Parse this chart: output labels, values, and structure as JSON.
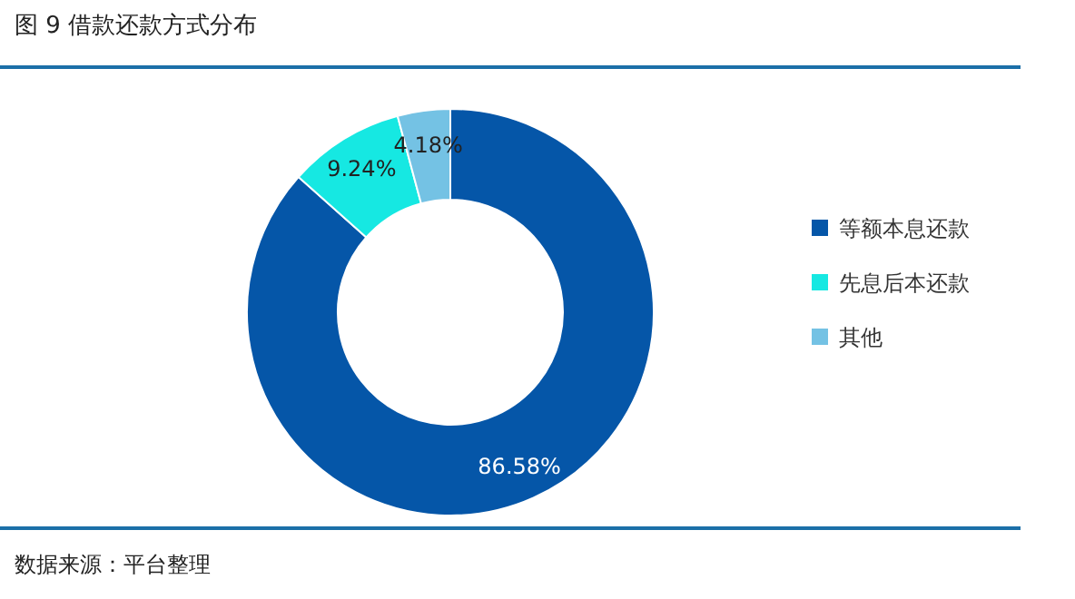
{
  "chart_data": {
    "type": "donut",
    "title": "图 9 借款还款方式分布",
    "categories": [
      "等额本息还款",
      "先息后本还款",
      "其他"
    ],
    "values": [
      86.58,
      9.24,
      4.18
    ],
    "colors": [
      "#0556a8",
      "#16e8e2",
      "#74c2e4"
    ],
    "value_labels": [
      "86.58%",
      "9.24%",
      "4.18%"
    ],
    "legend": "right",
    "annotations": [
      "数据来源：平台整理"
    ]
  }
}
